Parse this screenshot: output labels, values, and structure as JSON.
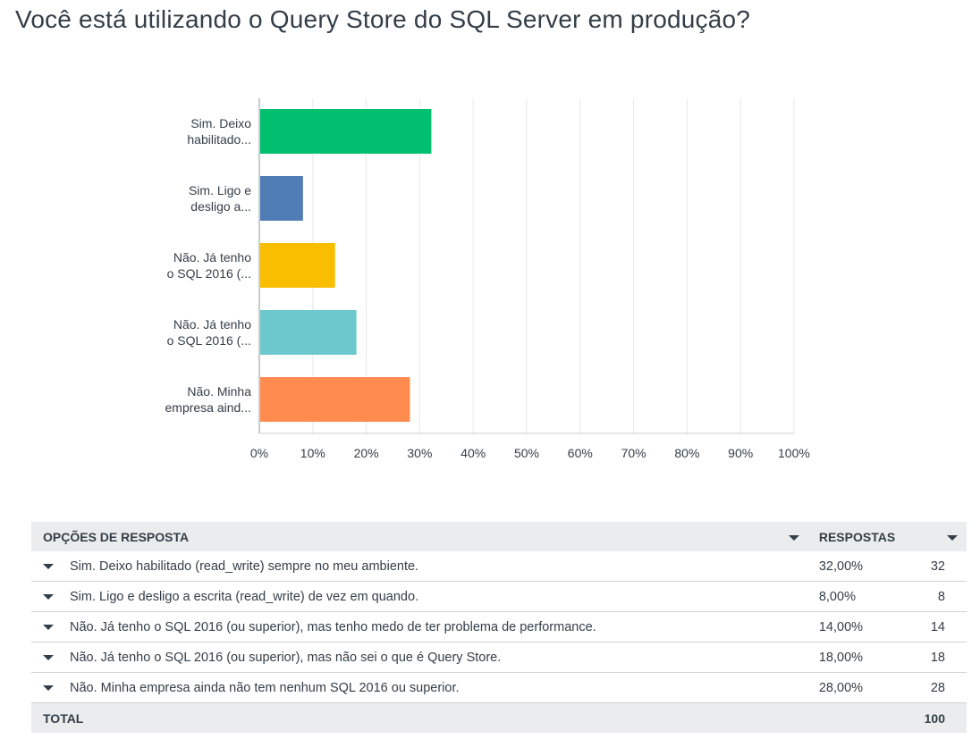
{
  "title": "Você está utilizando o Query Store do SQL Server em produção?",
  "chart_data": {
    "type": "bar",
    "orientation": "horizontal",
    "categories": [
      [
        "Sim. Deixo",
        "habilitado..."
      ],
      [
        "Sim. Ligo e",
        "desligo a..."
      ],
      [
        "Não. Já tenho",
        "o SQL 2016 (..."
      ],
      [
        "Não. Já tenho",
        "o SQL 2016 (..."
      ],
      [
        "Não. Minha",
        "empresa aind..."
      ]
    ],
    "values": [
      32,
      8,
      14,
      18,
      28
    ],
    "colors": [
      "#00bf6f",
      "#507cb6",
      "#f9be00",
      "#6bc8cd",
      "#ff8b4f"
    ],
    "xlim": [
      0,
      100
    ],
    "ticks": [
      "0%",
      "10%",
      "20%",
      "30%",
      "40%",
      "50%",
      "60%",
      "70%",
      "80%",
      "90%",
      "100%"
    ],
    "grid": true
  },
  "table": {
    "headers": {
      "option": "OPÇÕES DE RESPOSTA",
      "responses": "RESPOSTAS"
    },
    "rows": [
      {
        "label": "Sim. Deixo habilitado (read_write) sempre no meu ambiente.",
        "pct": "32,00%",
        "count": "32"
      },
      {
        "label": "Sim. Ligo e desligo a escrita (read_write) de vez em quando.",
        "pct": "8,00%",
        "count": "8"
      },
      {
        "label": "Não. Já tenho o SQL 2016 (ou superior), mas tenho medo de ter problema de performance.",
        "pct": "14,00%",
        "count": "14"
      },
      {
        "label": "Não. Já tenho o SQL 2016 (ou superior), mas não sei o que é Query Store.",
        "pct": "18,00%",
        "count": "18"
      },
      {
        "label": "Não. Minha empresa ainda não tem nenhum SQL 2016 ou superior.",
        "pct": "28,00%",
        "count": "28"
      }
    ],
    "total_label": "TOTAL",
    "total": "100"
  }
}
